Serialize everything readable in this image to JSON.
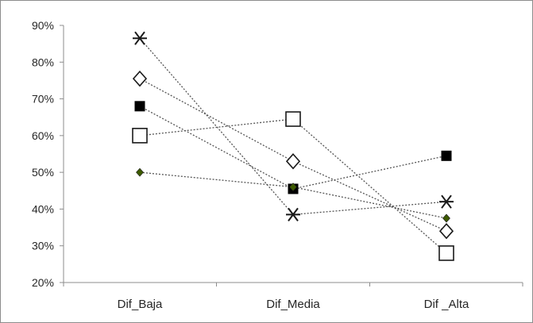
{
  "chart_data": {
    "type": "line",
    "categories": [
      "Dif_Baja",
      "Dif_Media",
      "Dif _Alta"
    ],
    "ylim": [
      20,
      90
    ],
    "yticks": [
      20,
      30,
      40,
      50,
      60,
      70,
      80,
      90
    ],
    "ytick_labels": [
      "20%",
      "30%",
      "40%",
      "50%",
      "60%",
      "70%",
      "80%",
      "90%"
    ],
    "grid": false,
    "legend": "none",
    "line_style": "dotted",
    "series": [
      {
        "marker": "star",
        "color": "#1a1a1a",
        "values": [
          86.5,
          38.5,
          42
        ]
      },
      {
        "marker": "diamond-open",
        "color": "#1a1a1a",
        "values": [
          75.5,
          53,
          34
        ]
      },
      {
        "marker": "square-filled",
        "color": "#000000",
        "values": [
          68,
          45.5,
          54.5
        ]
      },
      {
        "marker": "square-open",
        "color": "#1a1a1a",
        "values": [
          60,
          64.5,
          28
        ]
      },
      {
        "marker": "diamond-small",
        "color": "#3d5a00",
        "values": [
          50,
          46,
          37.5
        ]
      }
    ]
  }
}
